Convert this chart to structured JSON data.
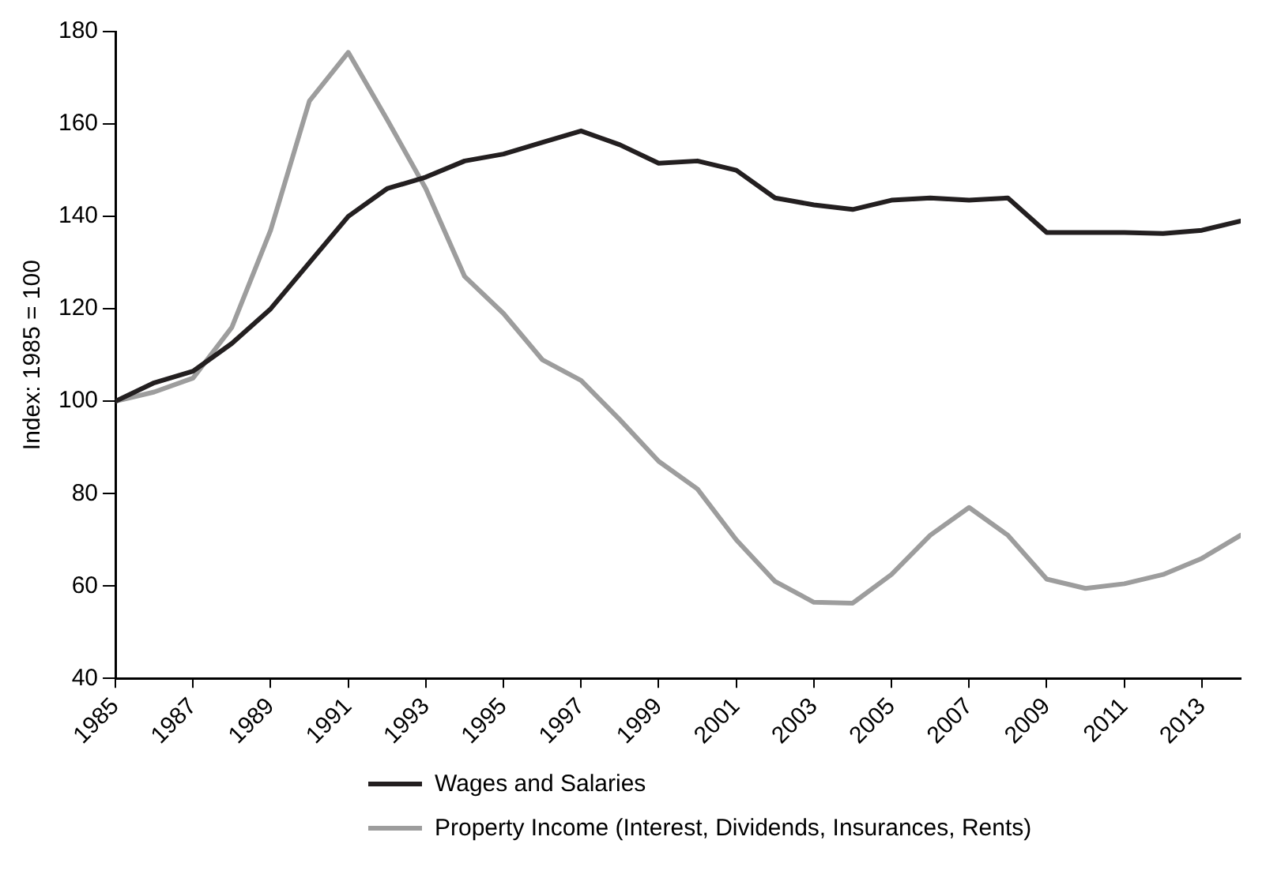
{
  "chart_data": {
    "type": "line",
    "ylabel": "Index: 1985 = 100",
    "x": [
      1985,
      1986,
      1987,
      1988,
      1989,
      1990,
      1991,
      1992,
      1993,
      1994,
      1995,
      1996,
      1997,
      1998,
      1999,
      2000,
      2001,
      2002,
      2003,
      2004,
      2005,
      2006,
      2007,
      2008,
      2009,
      2010,
      2011,
      2012,
      2013,
      2014
    ],
    "series": [
      {
        "name": "Wages and Salaries",
        "color": "#231f20",
        "values": [
          100,
          104,
          106.5,
          112.5,
          120,
          130,
          140,
          146,
          148.5,
          152,
          153.5,
          156,
          158.5,
          155.5,
          151.5,
          152,
          150,
          144,
          142.5,
          141.5,
          143.5,
          144,
          143.5,
          144,
          136.5,
          136.5,
          136.5,
          136.3,
          137,
          139
        ]
      },
      {
        "name": "Property Income (Interest, Dividends, Insurances, Rents)",
        "color": "#9d9d9d",
        "values": [
          100,
          102,
          105,
          116,
          137,
          165,
          175.5,
          161,
          146,
          127,
          119,
          109,
          104.5,
          96,
          87,
          81,
          70,
          61,
          56.5,
          56.3,
          62.5,
          71,
          77,
          71,
          61.5,
          59.5,
          60.5,
          62.5,
          66,
          71
        ]
      }
    ],
    "xlim": [
      1985,
      2014
    ],
    "xticks": [
      1985,
      1987,
      1989,
      1991,
      1993,
      1995,
      1997,
      1999,
      2001,
      2003,
      2005,
      2007,
      2009,
      2011,
      2013
    ],
    "ylim": [
      40,
      180
    ],
    "yticks": [
      40,
      60,
      80,
      100,
      120,
      140,
      160,
      180
    ],
    "grid": false,
    "legend": "bottom",
    "marker": "none",
    "line_style": "solid"
  }
}
